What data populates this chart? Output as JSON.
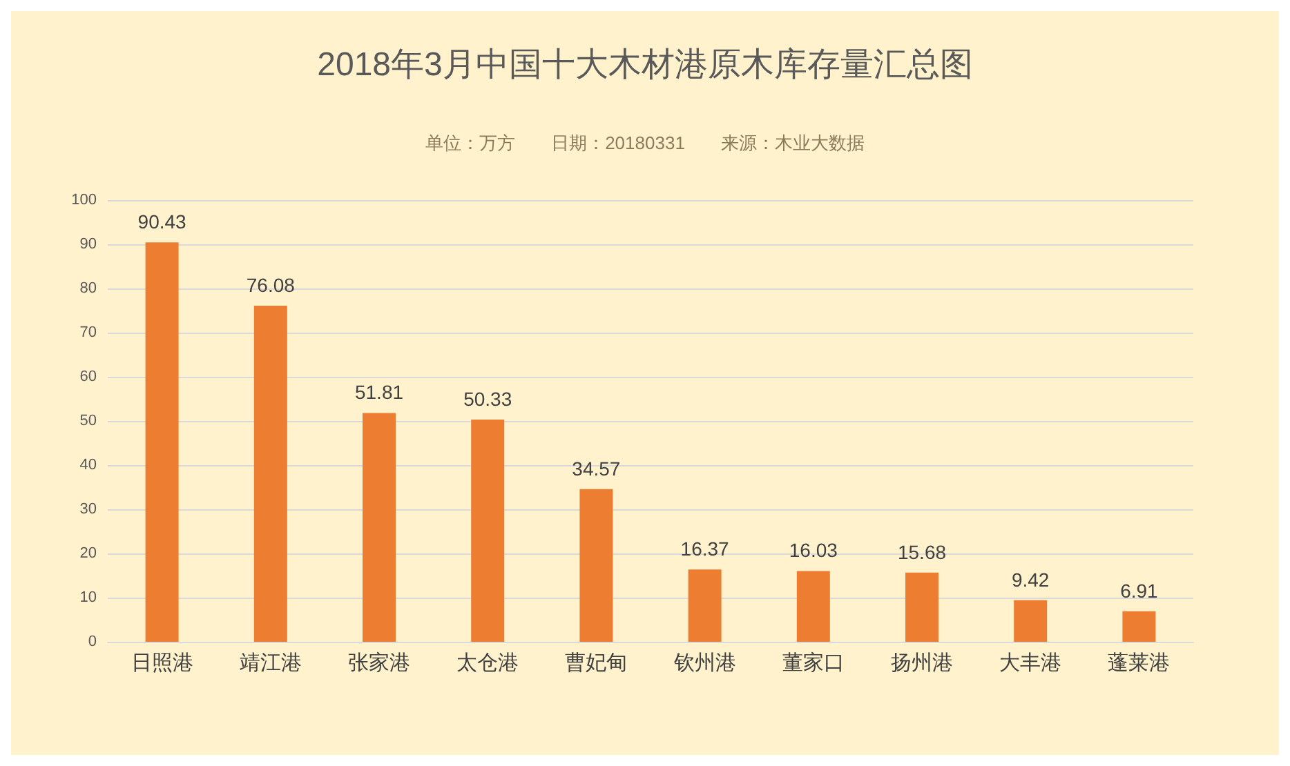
{
  "chart_data": {
    "type": "bar",
    "title": "2018年3月中国十大木材港原木库存量汇总图",
    "subtitle": "单位：万方　　日期：20180331　　来源：木业大数据",
    "categories": [
      "日照港",
      "靖江港",
      "张家港",
      "太仓港",
      "曹妃甸",
      "钦州港",
      "董家口",
      "扬州港",
      "大丰港",
      "蓬莱港"
    ],
    "values": [
      90.43,
      76.08,
      51.81,
      50.33,
      34.57,
      16.37,
      16.03,
      15.68,
      9.42,
      6.91
    ],
    "color": "#ed7d31",
    "ylim": [
      0,
      100
    ],
    "yticks": [
      0,
      10,
      20,
      30,
      40,
      50,
      60,
      70,
      80,
      90,
      100
    ],
    "grid": "y",
    "data_labels": true
  }
}
